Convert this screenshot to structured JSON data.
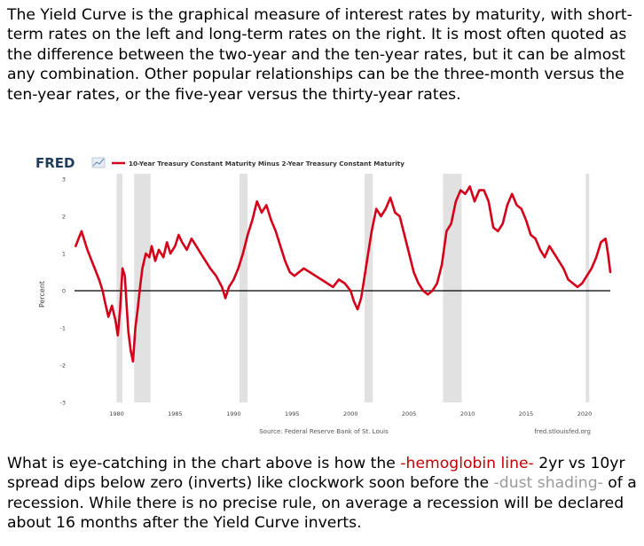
{
  "intro": {
    "text": "The Yield Curve is the graphical measure of interest rates by maturity, with short-term rates on the left and long-term rates on the right.  It is most often quoted as the difference between the two-year and the ten-year rates, but it can be almost any combination.  Other popular relationships can be the three-month versus the ten-year rates, or the five-year versus the thirty-year rates."
  },
  "chart_data": {
    "type": "line",
    "brand": "FRED",
    "title": "",
    "xlabel": "",
    "ylabel": "Percent",
    "source": "Source: Federal Reserve Bank of St. Louis",
    "site": "fred.stlouisfed.org",
    "xlim": [
      1976.4,
      2022.2
    ],
    "ylim": [
      -3,
      3
    ],
    "x_ticks": [
      "1980",
      "1985",
      "1990",
      "1995",
      "2000",
      "2005",
      "2010",
      "2015",
      "2020"
    ],
    "y_ticks": [
      "3",
      "2",
      "1",
      "0",
      "-1",
      "-2",
      "-3"
    ],
    "zero_line": true,
    "recessions": [
      [
        1980.0,
        1980.5
      ],
      [
        1981.5,
        1982.9
      ],
      [
        1990.5,
        1991.2
      ],
      [
        2001.2,
        2001.9
      ],
      [
        2007.9,
        2009.5
      ],
      [
        2020.1,
        2020.4
      ]
    ],
    "recession_color": "#e1e1e1",
    "series": [
      {
        "name": "10-Year Treasury Constant Maturity Minus 2-Year Treasury Constant Maturity",
        "color": "#d4001a",
        "x": [
          1976.5,
          1977.0,
          1977.5,
          1978.0,
          1978.5,
          1978.8,
          1979.0,
          1979.3,
          1979.6,
          1979.9,
          1980.1,
          1980.3,
          1980.5,
          1980.7,
          1980.9,
          1981.0,
          1981.2,
          1981.4,
          1981.6,
          1981.8,
          1982.0,
          1982.2,
          1982.5,
          1982.8,
          1983.0,
          1983.3,
          1983.6,
          1984.0,
          1984.3,
          1984.6,
          1985.0,
          1985.3,
          1985.6,
          1986.0,
          1986.4,
          1986.8,
          1987.2,
          1987.6,
          1988.0,
          1988.5,
          1989.0,
          1989.3,
          1989.6,
          1990.0,
          1990.4,
          1990.8,
          1991.2,
          1991.6,
          1992.0,
          1992.4,
          1992.8,
          1993.2,
          1993.6,
          1994.0,
          1994.4,
          1994.8,
          1995.2,
          1995.6,
          1996.0,
          1996.5,
          1997.0,
          1997.5,
          1998.0,
          1998.5,
          1999.0,
          1999.5,
          2000.0,
          2000.3,
          2000.6,
          2000.9,
          2001.2,
          2001.5,
          2001.8,
          2002.2,
          2002.6,
          2003.0,
          2003.4,
          2003.8,
          2004.2,
          2004.6,
          2005.0,
          2005.4,
          2005.8,
          2006.2,
          2006.6,
          2007.0,
          2007.4,
          2007.8,
          2008.2,
          2008.6,
          2009.0,
          2009.4,
          2009.8,
          2010.2,
          2010.6,
          2011.0,
          2011.4,
          2011.8,
          2012.2,
          2012.6,
          2013.0,
          2013.4,
          2013.8,
          2014.2,
          2014.6,
          2015.0,
          2015.4,
          2015.8,
          2016.2,
          2016.6,
          2017.0,
          2017.4,
          2017.8,
          2018.2,
          2018.6,
          2019.0,
          2019.4,
          2019.8,
          2020.2,
          2020.6,
          2021.0,
          2021.4,
          2021.8,
          2022.0,
          2022.2
        ],
        "values": [
          1.2,
          1.6,
          1.1,
          0.7,
          0.3,
          0.0,
          -0.3,
          -0.7,
          -0.4,
          -0.8,
          -1.2,
          -0.5,
          0.6,
          0.4,
          -0.6,
          -1.1,
          -1.6,
          -1.9,
          -1.0,
          -0.5,
          0.1,
          0.6,
          1.0,
          0.9,
          1.2,
          0.8,
          1.1,
          0.9,
          1.3,
          1.0,
          1.2,
          1.5,
          1.3,
          1.1,
          1.4,
          1.2,
          1.0,
          0.8,
          0.6,
          0.4,
          0.1,
          -0.2,
          0.1,
          0.3,
          0.6,
          1.0,
          1.5,
          1.9,
          2.4,
          2.1,
          2.3,
          1.9,
          1.6,
          1.2,
          0.8,
          0.5,
          0.4,
          0.5,
          0.6,
          0.5,
          0.4,
          0.3,
          0.2,
          0.1,
          0.3,
          0.2,
          0.0,
          -0.3,
          -0.5,
          -0.2,
          0.4,
          1.0,
          1.6,
          2.2,
          2.0,
          2.2,
          2.5,
          2.1,
          2.0,
          1.5,
          1.0,
          0.5,
          0.2,
          0.0,
          -0.1,
          0.0,
          0.2,
          0.7,
          1.6,
          1.8,
          2.4,
          2.7,
          2.6,
          2.8,
          2.4,
          2.7,
          2.7,
          2.4,
          1.7,
          1.6,
          1.8,
          2.3,
          2.6,
          2.3,
          2.2,
          1.9,
          1.5,
          1.4,
          1.1,
          0.9,
          1.2,
          1.0,
          0.8,
          0.6,
          0.3,
          0.2,
          0.1,
          0.2,
          0.4,
          0.6,
          0.9,
          1.3,
          1.4,
          1.0,
          0.5
        ]
      }
    ]
  },
  "outro": {
    "part1": "What is eye-catching in the chart above is how the ",
    "highlight1": "-hemoglobin line-",
    "part2": " 2yr vs 10yr spread dips below zero (inverts) like clockwork soon before the ",
    "highlight2": "-dust shading-",
    "part3": " of a recession.  While there is no precise rule, on average a recession will be declared about 16 months after the Yield Curve inverts."
  }
}
